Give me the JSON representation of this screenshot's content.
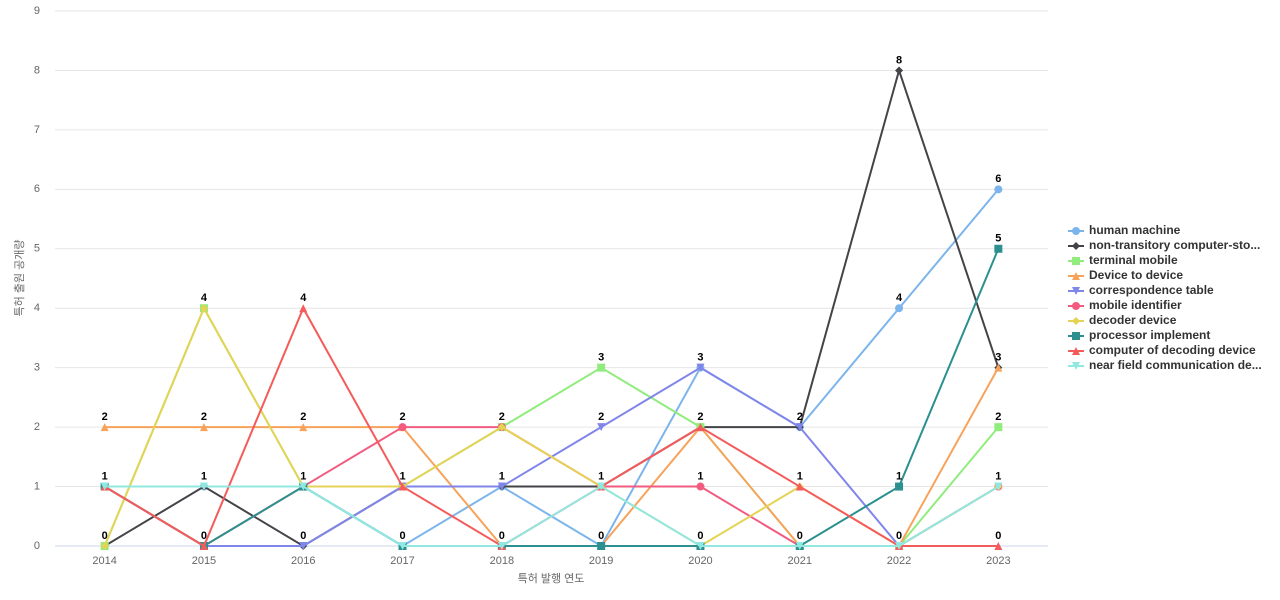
{
  "chart_data": {
    "type": "line",
    "x_label": "특허 발행 연도",
    "y_label": "특허 출원 공개량",
    "categories": [
      "2014",
      "2015",
      "2016",
      "2017",
      "2018",
      "2019",
      "2020",
      "2021",
      "2022",
      "2023"
    ],
    "ylim": [
      0,
      9
    ],
    "yticks": [
      0,
      1,
      2,
      3,
      4,
      5,
      6,
      7,
      8,
      9
    ],
    "grid": true,
    "legend": "right",
    "series": [
      {
        "name": "human machine",
        "color": "#7cb5ec",
        "marker": "circle",
        "values": [
          1,
          1,
          1,
          0,
          1,
          0,
          3,
          2,
          4,
          6
        ]
      },
      {
        "name": "non-transitory computer-sto...",
        "color": "#434348",
        "marker": "diamond",
        "values": [
          0,
          1,
          0,
          1,
          1,
          1,
          2,
          2,
          8,
          3
        ]
      },
      {
        "name": "terminal mobile",
        "color": "#90ed7d",
        "marker": "square",
        "values": [
          0,
          4,
          1,
          1,
          2,
          3,
          2,
          0,
          0,
          2
        ]
      },
      {
        "name": "Device to device",
        "color": "#f7a35c",
        "marker": "triangle",
        "values": [
          2,
          2,
          2,
          2,
          0,
          0,
          2,
          0,
          0,
          3
        ]
      },
      {
        "name": "correspondence table",
        "color": "#8085e9",
        "marker": "triangle-down",
        "values": [
          1,
          0,
          0,
          1,
          1,
          2,
          3,
          2,
          0,
          1
        ]
      },
      {
        "name": "mobile identifier",
        "color": "#f15c80",
        "marker": "circle",
        "values": [
          1,
          0,
          1,
          2,
          2,
          1,
          1,
          0,
          0,
          1
        ]
      },
      {
        "name": "decoder device",
        "color": "#e4d354",
        "marker": "diamond",
        "values": [
          0,
          4,
          1,
          1,
          2,
          1,
          0,
          1,
          0,
          1
        ]
      },
      {
        "name": "processor implement",
        "color": "#2b908f",
        "marker": "square",
        "values": [
          1,
          0,
          1,
          0,
          0,
          0,
          0,
          0,
          1,
          5
        ]
      },
      {
        "name": "computer of decoding device",
        "color": "#f45b5b",
        "marker": "triangle",
        "values": [
          1,
          0,
          4,
          1,
          0,
          1,
          2,
          1,
          0,
          0
        ]
      },
      {
        "name": "near field communication de...",
        "color": "#91e8e1",
        "marker": "triangle-down",
        "values": [
          1,
          1,
          1,
          0,
          0,
          1,
          0,
          0,
          0,
          1
        ]
      }
    ]
  }
}
